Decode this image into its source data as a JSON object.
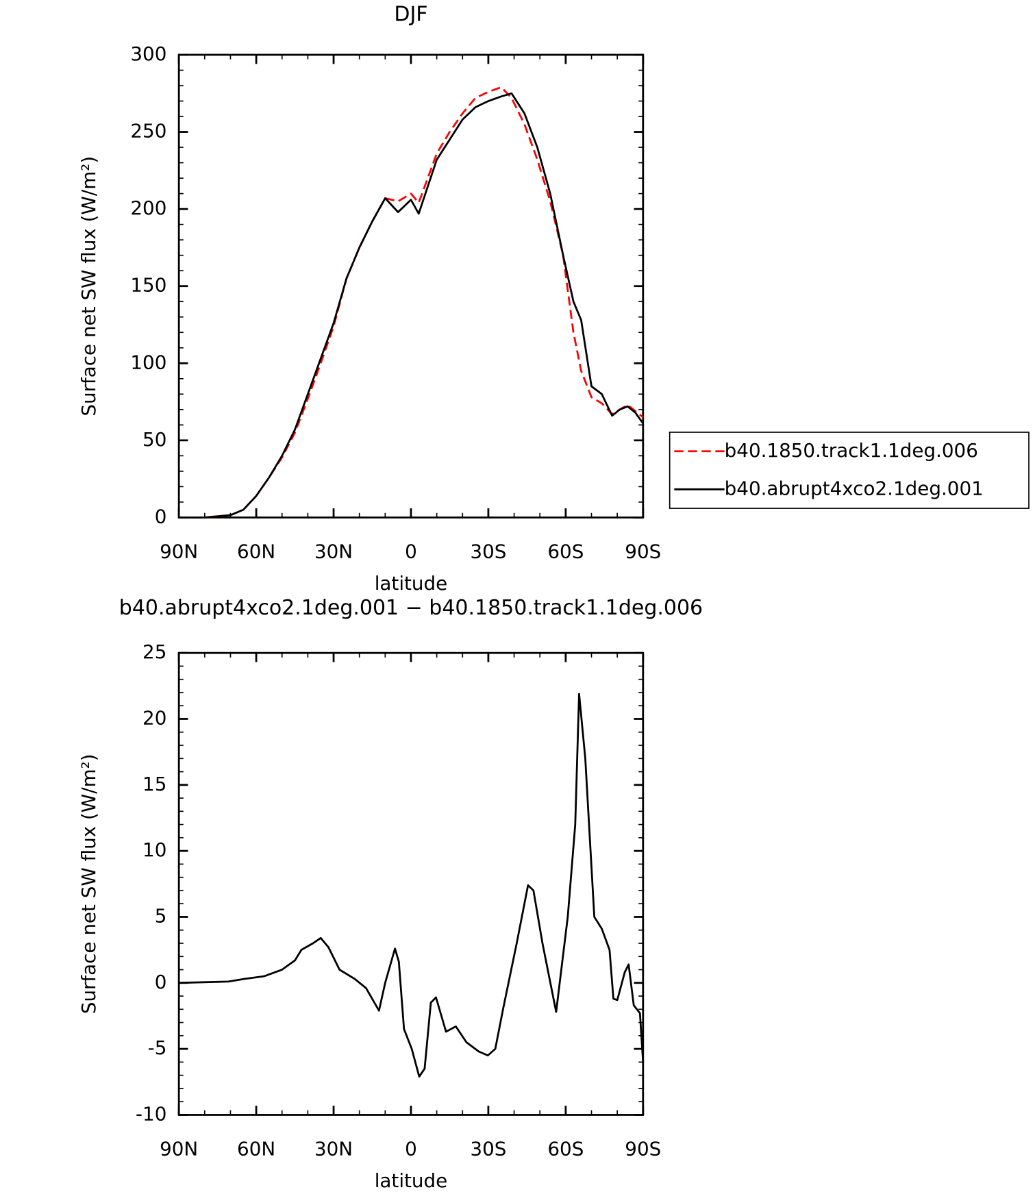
{
  "chart_data": [
    {
      "type": "line",
      "title": "DJF",
      "xlabel": "latitude",
      "ylabel": "Surface net SW flux (W/m²)",
      "x": [
        90,
        80,
        70,
        65,
        60,
        55,
        50,
        45,
        40,
        35,
        30,
        25,
        20,
        15,
        10,
        5,
        0,
        -3,
        -10,
        -15,
        -20,
        -25,
        -30,
        -35,
        -39,
        -44,
        -49,
        -54,
        -59,
        -63,
        -66,
        -70,
        -74,
        -78,
        -81,
        -84,
        -87,
        -90
      ],
      "xlim": [
        90,
        -90
      ],
      "xticks": [
        {
          "value": 90,
          "label": "90N"
        },
        {
          "value": 60,
          "label": "60N"
        },
        {
          "value": 30,
          "label": "30N"
        },
        0,
        {
          "value": -30,
          "label": "30S"
        },
        {
          "value": -60,
          "label": "60S"
        },
        {
          "value": -90,
          "label": "90S"
        }
      ],
      "ylim": [
        0,
        300
      ],
      "yticks": [
        0,
        50,
        100,
        150,
        200,
        250,
        300
      ],
      "legend": "right",
      "series": [
        {
          "name": "b40.1850.track1.1deg.006",
          "color": "#ff0000",
          "line_style": "dashed",
          "values": [
            0,
            0,
            1.5,
            5,
            14,
            26,
            39,
            55,
            77,
            100,
            124,
            155,
            175,
            192,
            207,
            205,
            210,
            204,
            236,
            250,
            262,
            272,
            276,
            279,
            272,
            255,
            232,
            205,
            170,
            120,
            95,
            78,
            74,
            67,
            70,
            73,
            69,
            65
          ]
        },
        {
          "name": "b40.abrupt4xco2.1deg.001",
          "color": "#000000",
          "line_style": "solid",
          "values": [
            0,
            0,
            1.5,
            5,
            14,
            26,
            40,
            57,
            80,
            103,
            126,
            155,
            175,
            192,
            207,
            198,
            206,
            197,
            232,
            245,
            258,
            266,
            270,
            273,
            275,
            262,
            240,
            210,
            170,
            140,
            128,
            85,
            80,
            66,
            70,
            72,
            68,
            61
          ]
        }
      ]
    },
    {
      "type": "line",
      "title": "b40.abrupt4xco2.1deg.001 − b40.1850.track1.1deg.006",
      "xlabel": "latitude",
      "ylabel": "Surface net SW flux (W/m²)",
      "x": [
        90,
        70.8,
        64.6,
        57,
        50,
        45,
        42.5,
        38,
        35,
        32,
        27.7,
        21.8,
        17.4,
        12.4,
        10,
        6.2,
        4.7,
        2.7,
        -0.3,
        -3.2,
        -5.3,
        -7.7,
        -9.7,
        -13.6,
        -17.4,
        -21.5,
        -26.3,
        -29.8,
        -32.7,
        -35.7,
        -41,
        -45.4,
        -47.5,
        -51,
        -56.3,
        -60.8,
        -63.7,
        -65.2,
        -67.6,
        -71.1,
        -74,
        -77,
        -78.5,
        -80,
        -82.9,
        -84.4,
        -86.4,
        -88.8,
        -90
      ],
      "xlim": [
        90,
        -90
      ],
      "xticks": [
        {
          "value": 90,
          "label": "90N"
        },
        {
          "value": 60,
          "label": "60N"
        },
        {
          "value": 30,
          "label": "30N"
        },
        0,
        {
          "value": -30,
          "label": "30S"
        },
        {
          "value": -60,
          "label": "60S"
        },
        {
          "value": -90,
          "label": "90S"
        }
      ],
      "ylim": [
        -10,
        25
      ],
      "yticks": [
        -10,
        -5,
        0,
        5,
        10,
        15,
        20,
        25
      ],
      "series": [
        {
          "color": "#000000",
          "line_style": "solid",
          "values": [
            0,
            0.1,
            0.3,
            0.5,
            1,
            1.7,
            2.5,
            3,
            3.4,
            2.7,
            1,
            0.3,
            -0.4,
            -2.1,
            0,
            2.6,
            1.6,
            -3.5,
            -5,
            -7.1,
            -6.5,
            -1.5,
            -1.1,
            -3.7,
            -3.3,
            -4.5,
            -5.2,
            -5.5,
            -5,
            -2,
            3,
            7.4,
            7,
            3,
            -2.2,
            5,
            12,
            21.9,
            17,
            5,
            4.1,
            2.5,
            -1.2,
            -1.3,
            0.8,
            1.4,
            -1.7,
            -2.3,
            -6
          ]
        }
      ]
    }
  ]
}
